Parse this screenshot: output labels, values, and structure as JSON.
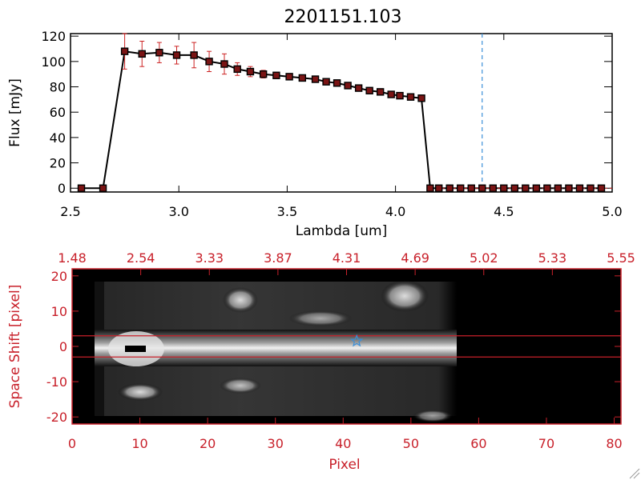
{
  "colors": {
    "black": "#000000",
    "red_axis": "#c8202a",
    "error_bar": "#cc2222",
    "marker_fill": "#7a1414",
    "dashed_line": "#3a8fd8",
    "star": "#3a8fd8"
  },
  "chart_data": [
    {
      "type": "line",
      "title": "2201151.103",
      "xlabel": "Lambda [um]",
      "ylabel": "Flux [mJy]",
      "xlim": [
        2.5,
        5.0
      ],
      "ylim": [
        -3,
        122
      ],
      "x_ticks": [
        "2.5",
        "3.0",
        "3.5",
        "4.0",
        "4.5",
        "5.0"
      ],
      "y_ticks": [
        "0",
        "20",
        "40",
        "60",
        "80",
        "100",
        "120"
      ],
      "vertical_dashed_line_x": 4.4,
      "grid": false,
      "series": [
        {
          "x": [
            2.55,
            2.65,
            2.75,
            2.83,
            2.91,
            2.99,
            3.07,
            3.14,
            3.21,
            3.27,
            3.33,
            3.39,
            3.45,
            3.51,
            3.57,
            3.63,
            3.68,
            3.73,
            3.78,
            3.83,
            3.88,
            3.93,
            3.98,
            4.02,
            4.07,
            4.12,
            4.16,
            4.2,
            4.25,
            4.3,
            4.35,
            4.4,
            4.45,
            4.5,
            4.55,
            4.6,
            4.65,
            4.7,
            4.75,
            4.8,
            4.85,
            4.9,
            4.95
          ],
          "y": [
            0,
            0,
            108,
            106,
            107,
            105,
            105,
            100,
            98,
            94,
            92,
            90,
            89,
            88,
            87,
            86,
            84,
            83,
            81,
            79,
            77,
            76,
            74,
            73,
            72,
            71,
            0,
            0,
            0,
            0,
            0,
            0,
            0,
            0,
            0,
            0,
            0,
            0,
            0,
            0,
            0,
            0,
            0
          ],
          "yerr": [
            0,
            0,
            14,
            10,
            8,
            7,
            10,
            8,
            8,
            5,
            4,
            3,
            2,
            2,
            2,
            2,
            2,
            2,
            2,
            2,
            2,
            2,
            2,
            2,
            2,
            2,
            0,
            0,
            0,
            0,
            0,
            0,
            0,
            0,
            0,
            0,
            0,
            0,
            0,
            0,
            0,
            0,
            0
          ]
        }
      ]
    },
    {
      "type": "heatmap",
      "xlabel": "Pixel",
      "ylabel": "Space Shift [pixel]",
      "xlim": [
        0,
        81
      ],
      "ylim": [
        -22,
        22
      ],
      "x_ticks": [
        "0",
        "10",
        "20",
        "30",
        "40",
        "50",
        "60",
        "70",
        "80"
      ],
      "y_ticks": [
        "-20",
        "-10",
        "0",
        "10",
        "20"
      ],
      "top_ticks": [
        "1.48",
        "2.54",
        "3.33",
        "3.87",
        "4.31",
        "4.69",
        "5.02",
        "5.33",
        "5.55"
      ],
      "signal_extent_pixels": [
        0,
        57
      ],
      "extraction_window": [
        -3,
        3
      ],
      "star_marker": {
        "x": 42,
        "y": 1.5
      }
    }
  ]
}
